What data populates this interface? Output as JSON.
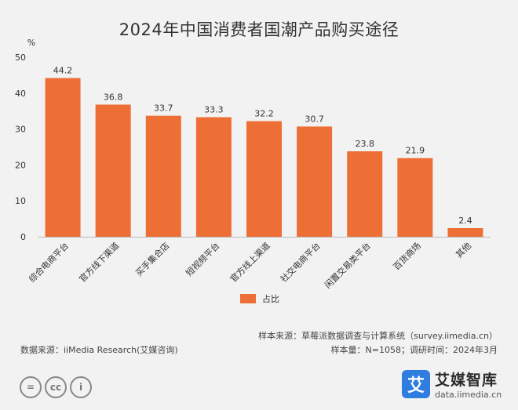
{
  "chart_data": {
    "type": "bar",
    "title": "2024年中国消费者国潮产品购买途径",
    "ylabel": "%",
    "ylim": [
      0,
      50
    ],
    "yticks": [
      0,
      10,
      20,
      30,
      40,
      50
    ],
    "categories": [
      "综合电商平台",
      "官方线下渠道",
      "买手集合店",
      "短视频平台",
      "官方线上渠道",
      "社交电商平台",
      "闲置交易类平台",
      "百货商场",
      "其他"
    ],
    "series": [
      {
        "name": "占比",
        "values": [
          44.2,
          36.8,
          33.7,
          33.3,
          32.2,
          30.7,
          23.8,
          21.9,
          2.4
        ]
      }
    ],
    "bar_color": "#ed6f35",
    "legend_position": "bottom-center",
    "grid": false
  },
  "notes": {
    "sample_source": "样本来源：草莓派数据调查与计算系统（survey.iimedia.cn）",
    "sample_info": "样本量：N=1058；调研时间：2024年3月",
    "data_source": "数据来源：iiMedia Research(艾媒咨询)"
  },
  "brand": {
    "logo_text": "艾",
    "name": "艾媒智库",
    "url": "data.iimedia.cn"
  },
  "cc_icons": [
    "=",
    "cc",
    "i"
  ]
}
